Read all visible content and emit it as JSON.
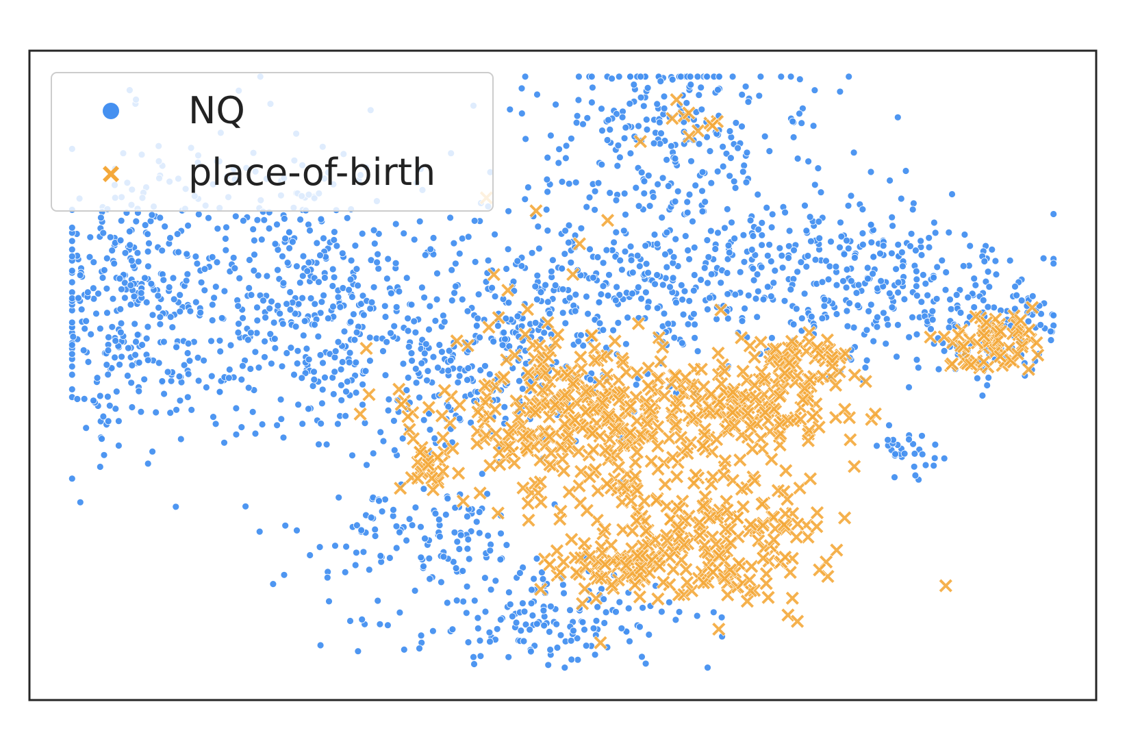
{
  "chart_data": {
    "type": "scatter",
    "title": "",
    "xlabel": "",
    "ylabel": "",
    "xlim": [
      -100,
      100
    ],
    "ylim": [
      -100,
      100
    ],
    "grid": false,
    "ticks": false,
    "legend": {
      "placement": "top-left"
    },
    "series": [
      {
        "name": "NQ",
        "marker": "circle",
        "color": "#4590f0",
        "clusters": [
          {
            "cx": -80,
            "cy": 23,
            "sx": 9,
            "sy": 24,
            "n": 360
          },
          {
            "cx": -50,
            "cy": 26,
            "sx": 10,
            "sy": 22,
            "n": 320
          },
          {
            "cx": -25,
            "cy": 12,
            "sx": 11,
            "sy": 20,
            "n": 230
          },
          {
            "cx": -5,
            "cy": 6,
            "sx": 9,
            "sy": 17,
            "n": 150
          },
          {
            "cx": 17,
            "cy": 30,
            "sx": 14,
            "sy": 13,
            "n": 260
          },
          {
            "cx": 20,
            "cy": 74,
            "sx": 14,
            "sy": 14,
            "n": 250
          },
          {
            "cx": 55,
            "cy": 30,
            "sx": 15,
            "sy": 14,
            "n": 300
          },
          {
            "cx": 80,
            "cy": 14,
            "sx": 8,
            "sy": 10,
            "n": 100
          },
          {
            "cx": -27,
            "cy": -51,
            "sx": 12,
            "sy": 8,
            "n": 120
          },
          {
            "cx": -3,
            "cy": -76,
            "sx": 14,
            "sy": 7,
            "n": 150
          },
          {
            "cx": 65,
            "cy": -24,
            "sx": 4,
            "sy": 4,
            "n": 30
          }
        ]
      },
      {
        "name": "place-of-birth",
        "marker": "x",
        "color": "#f4a83a",
        "clusters": [
          {
            "cx": 5,
            "cy": -13,
            "sx": 13,
            "sy": 12,
            "n": 330
          },
          {
            "cx": 35,
            "cy": -8,
            "sx": 9,
            "sy": 8,
            "n": 140
          },
          {
            "cx": 27,
            "cy": -50,
            "sx": 12,
            "sy": 11,
            "n": 220
          },
          {
            "cx": 8,
            "cy": -60,
            "sx": 6,
            "sy": 4,
            "n": 50
          },
          {
            "cx": 80,
            "cy": 10,
            "sx": 4,
            "sy": 5,
            "n": 70
          },
          {
            "cx": 45,
            "cy": 6,
            "sx": 4,
            "sy": 3,
            "n": 40
          },
          {
            "cx": -25,
            "cy": -28,
            "sx": 2,
            "sy": 3,
            "n": 20
          },
          {
            "cx": -15,
            "cy": 15,
            "sx": 14,
            "sy": 22,
            "n": 25
          },
          {
            "cx": 22,
            "cy": 78,
            "sx": 4,
            "sy": 3,
            "n": 10
          }
        ]
      }
    ]
  }
}
